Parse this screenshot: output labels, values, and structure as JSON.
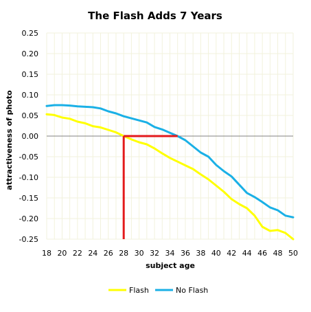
{
  "chart_data": {
    "type": "line",
    "title": "The Flash Adds 7 Years",
    "xlabel": "subject age",
    "ylabel": "attractiveness of photo",
    "xlim": [
      18,
      50
    ],
    "ylim": [
      -0.25,
      0.25
    ],
    "x_ticks": [
      "18",
      "20",
      "22",
      "24",
      "26",
      "28",
      "30",
      "32",
      "34",
      "36",
      "38",
      "40",
      "42",
      "44",
      "46",
      "48",
      "50"
    ],
    "y_ticks": [
      "0.25",
      "0.20",
      "0.15",
      "0.10",
      "0.05",
      "0.00",
      "-0.05",
      "-0.10",
      "-0.15",
      "-0.20",
      "-0.25"
    ],
    "grid": true,
    "legend_position": "bottom",
    "x": [
      18,
      19,
      20,
      21,
      22,
      23,
      24,
      25,
      26,
      27,
      28,
      29,
      30,
      31,
      32,
      33,
      34,
      35,
      36,
      37,
      38,
      39,
      40,
      41,
      42,
      43,
      44,
      45,
      46,
      47,
      48,
      49,
      50
    ],
    "series": [
      {
        "name": "Flash",
        "color": "#ffff00",
        "values": [
          0.053,
          0.051,
          0.045,
          0.042,
          0.035,
          0.031,
          0.024,
          0.021,
          0.015,
          0.009,
          0.0,
          -0.008,
          -0.015,
          -0.02,
          -0.03,
          -0.042,
          -0.053,
          -0.062,
          -0.071,
          -0.08,
          -0.093,
          -0.105,
          -0.12,
          -0.135,
          -0.153,
          -0.165,
          -0.175,
          -0.193,
          -0.22,
          -0.23,
          -0.228,
          -0.235,
          -0.25
        ]
      },
      {
        "name": "No Flash",
        "color": "#1ab0e6",
        "values": [
          0.073,
          0.075,
          0.075,
          0.074,
          0.072,
          0.071,
          0.07,
          0.067,
          0.06,
          0.055,
          0.048,
          0.043,
          0.038,
          0.033,
          0.022,
          0.016,
          0.008,
          0.0,
          -0.01,
          -0.025,
          -0.04,
          -0.05,
          -0.07,
          -0.085,
          -0.098,
          -0.118,
          -0.138,
          -0.148,
          -0.16,
          -0.173,
          -0.18,
          -0.193,
          -0.197
        ]
      }
    ],
    "annotation": {
      "color": "#e31a1c",
      "vertical_x": 28,
      "horizontal_from_x": 28,
      "horizontal_to_x": 35,
      "horizontal_y": 0
    }
  }
}
